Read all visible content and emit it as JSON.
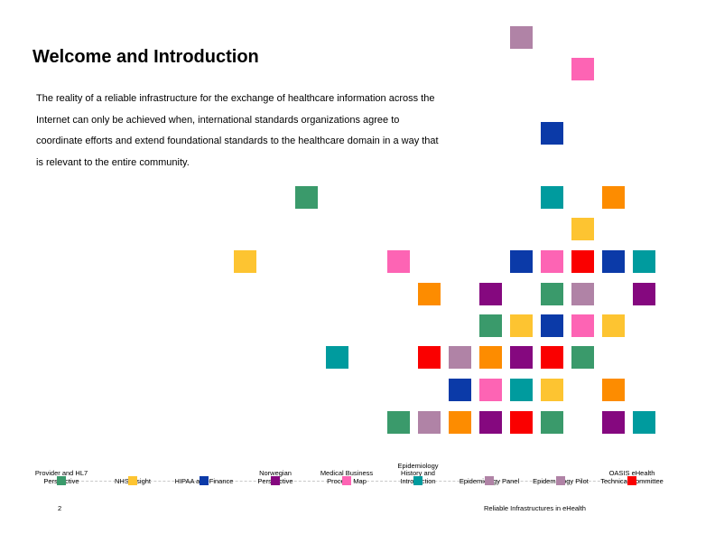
{
  "slide": {
    "title": "Welcome and Introduction",
    "intro_lines": [
      "The reality of a reliable infrastructure for the exchange of healthcare information across the",
      "Internet can only be achieved when, international standards organizations agree to",
      "coordinate efforts and extend foundational standards to the healthcare domain in a way that",
      "is relevant to the entire community."
    ],
    "page_number": "2",
    "footer": "Reliable Infrastructures in eHealth"
  },
  "colors": {
    "green": "#3a9a6b",
    "yellow": "#fdc431",
    "blue": "#0b3aa8",
    "purple": "#85087f",
    "pink": "#fd64b4",
    "teal": "#009b9e",
    "red": "#fa0000",
    "orange": "#fd8c00",
    "mauve": "#b083a6"
  },
  "timeline": [
    {
      "label": "Provider and HL7 Perspective",
      "color": "green"
    },
    {
      "label": "NHS Insight",
      "color": "yellow"
    },
    {
      "label": "HIPAA and Finance",
      "color": "blue"
    },
    {
      "label": "Norwegian Perspective",
      "color": "purple"
    },
    {
      "label": "Medical Business Process Map",
      "color": "pink"
    },
    {
      "label": "Epidemiology History and Introduction",
      "color": "teal"
    },
    {
      "label": "Epidemiology Panel",
      "color": "mauve"
    },
    {
      "label": "Epidemiology Pilot",
      "color": "mauve"
    },
    {
      "label": "OASIS eHealth Technical Committee",
      "color": "red"
    }
  ]
}
